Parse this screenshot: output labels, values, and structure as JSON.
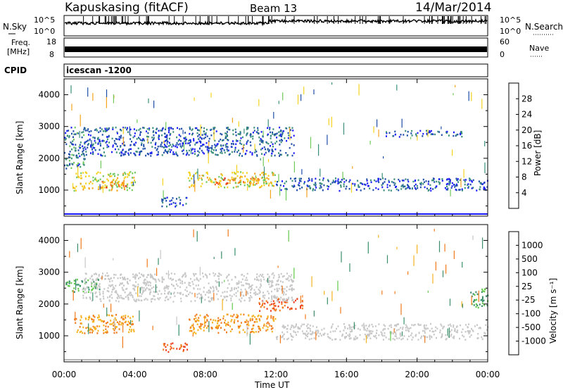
{
  "header": {
    "station": "Kapuskasing (fitACF)",
    "beam": "Beam 13",
    "date": "14/Mar/2014"
  },
  "strips": {
    "nsky_label": "N.Sky",
    "nsky_ticks": [
      "10^5",
      "10^0"
    ],
    "nsearch_label": "N.Search",
    "nsearch_ticks": [
      "10^5",
      "10^0"
    ],
    "freq_label_line1": "Freq.",
    "freq_label_line2": "[MHz]",
    "freq_ticks": [
      "18",
      "8"
    ],
    "nave_label": "Nave",
    "nave_ticks": [
      "60",
      "0"
    ],
    "cpid_label": "CPID",
    "cpid_text": "icescan -1200"
  },
  "axes": {
    "ylabel": "Slant Range [km]",
    "xlabel": "Time UT",
    "yticks": [
      "1000",
      "2000",
      "3000",
      "4000"
    ],
    "xticks": [
      "00:00",
      "04:00",
      "08:00",
      "12:00",
      "16:00",
      "20:00",
      "00:00"
    ]
  },
  "power_scale": {
    "label": "Power [dB]",
    "ticks": [
      "4",
      "8",
      "12",
      "16",
      "20",
      "24",
      "28"
    ],
    "colors": [
      "#1a1aff",
      "#1f4ea8",
      "#3a8f7a",
      "#6fc85a",
      "#f4d21e",
      "#f5a41c",
      "#f26a1c",
      "#ee1c1c"
    ]
  },
  "velocity_scale": {
    "label": "Velocity [m s⁻¹]",
    "ticks": [
      "1000",
      "500",
      "100",
      "25",
      "-25",
      "-100",
      "-500",
      "-1000"
    ],
    "colors": [
      "#2436c4",
      "#2f6da5",
      "#3a8f6a",
      "#62c84a",
      "#c8c8c8",
      "#f4b21e",
      "#f07a1c",
      "#ee3c1c",
      "#e61414"
    ]
  },
  "chart_data": [
    {
      "type": "heatmap",
      "name": "Power",
      "x_range": [
        "00:00",
        "24:00"
      ],
      "ylim": [
        180,
        4500
      ],
      "regions": [
        {
          "t": [
            0.0,
            1.2
          ],
          "r": [
            1700,
            3000
          ],
          "v": 8
        },
        {
          "t": [
            0.5,
            4.0
          ],
          "r": [
            1000,
            1600
          ],
          "v": 18
        },
        {
          "t": [
            2.0,
            3.5
          ],
          "r": [
            1100,
            1300
          ],
          "v": 24
        },
        {
          "t": [
            5.5,
            7.0
          ],
          "r": [
            500,
            800
          ],
          "v": 6
        },
        {
          "t": [
            7.0,
            12.0
          ],
          "r": [
            1100,
            1600
          ],
          "v": 18
        },
        {
          "t": [
            8.5,
            11.0
          ],
          "r": [
            1200,
            1400
          ],
          "v": 24
        },
        {
          "t": [
            12.0,
            24.0
          ],
          "r": [
            1000,
            1400
          ],
          "v": 6
        },
        {
          "t": [
            1.0,
            13.0
          ],
          "r": [
            2100,
            3000
          ],
          "v": 6
        },
        {
          "t": [
            18.0,
            22.5
          ],
          "r": [
            2700,
            2900
          ],
          "v": 6
        }
      ]
    },
    {
      "type": "heatmap",
      "name": "Velocity",
      "x_range": [
        "00:00",
        "24:00"
      ],
      "ylim": [
        180,
        4500
      ],
      "regions": [
        {
          "t": [
            0.0,
            2.0
          ],
          "r": [
            2400,
            2800
          ],
          "v": 100
        },
        {
          "t": [
            0.5,
            4.0
          ],
          "r": [
            1100,
            1700
          ],
          "v": -100
        },
        {
          "t": [
            5.5,
            7.0
          ],
          "r": [
            500,
            800
          ],
          "v": -500
        },
        {
          "t": [
            7.0,
            12.0
          ],
          "r": [
            1100,
            1700
          ],
          "v": -100
        },
        {
          "t": [
            11.0,
            13.5
          ],
          "r": [
            1800,
            2200
          ],
          "v": -500
        },
        {
          "t": [
            12.0,
            24.0
          ],
          "r": [
            900,
            1400
          ],
          "v": 0
        },
        {
          "t": [
            1.0,
            13.0
          ],
          "r": [
            2100,
            3000
          ],
          "v": 0
        },
        {
          "t": [
            23.0,
            24.0
          ],
          "r": [
            1900,
            2500
          ],
          "v": 100
        }
      ]
    }
  ]
}
